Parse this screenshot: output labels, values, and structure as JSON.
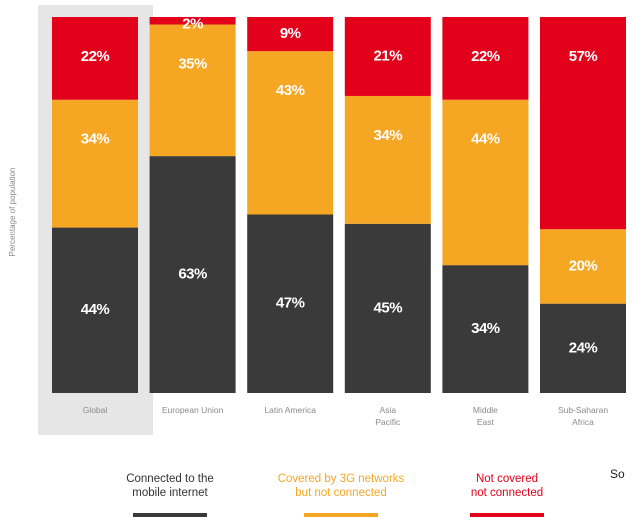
{
  "chart_data": {
    "type": "bar",
    "stacked": true,
    "ylabel": "Percentage of population",
    "categories": [
      [
        "Global"
      ],
      [
        "European Union"
      ],
      [
        "Latin America"
      ],
      [
        "Asia",
        "Pacific"
      ],
      [
        "Middle",
        "East"
      ],
      [
        "Sub-Saharan",
        "Africa"
      ]
    ],
    "highlighted_category": "Global",
    "series": [
      {
        "name": "Connected to the mobile internet",
        "legend_lines": [
          "Connected to the",
          "mobile internet"
        ],
        "color": "#3a3a3a",
        "values": [
          44,
          63,
          47,
          45,
          34,
          24
        ],
        "labels": [
          "44%",
          "63%",
          "47%",
          "45%",
          "34%",
          "24%"
        ]
      },
      {
        "name": "Covered by 3G networks but not connected",
        "legend_lines": [
          "Covered by 3G networks",
          "but not connected"
        ],
        "color": "#f5a623",
        "values": [
          34,
          35,
          43,
          34,
          44,
          20
        ],
        "labels": [
          "34%",
          "35%",
          "43%",
          "34%",
          "44%",
          "20%"
        ]
      },
      {
        "name": "Not covered not connected",
        "legend_lines": [
          "Not covered",
          "not connected"
        ],
        "color": "#e2001a",
        "values": [
          22,
          2,
          9,
          21,
          22,
          57
        ],
        "labels": [
          "22%",
          "2%",
          "9%",
          "21%",
          "22%",
          "57%"
        ]
      }
    ],
    "ylim": [
      0,
      100
    ],
    "grid": false,
    "legend_position": "bottom"
  },
  "colors": {
    "label_text": "#ffffff",
    "axis_text": "#8a8a8a",
    "highlight_bg": "#e6e6e6",
    "legend_connected_text": "#333333"
  },
  "source": {
    "text": "So"
  }
}
